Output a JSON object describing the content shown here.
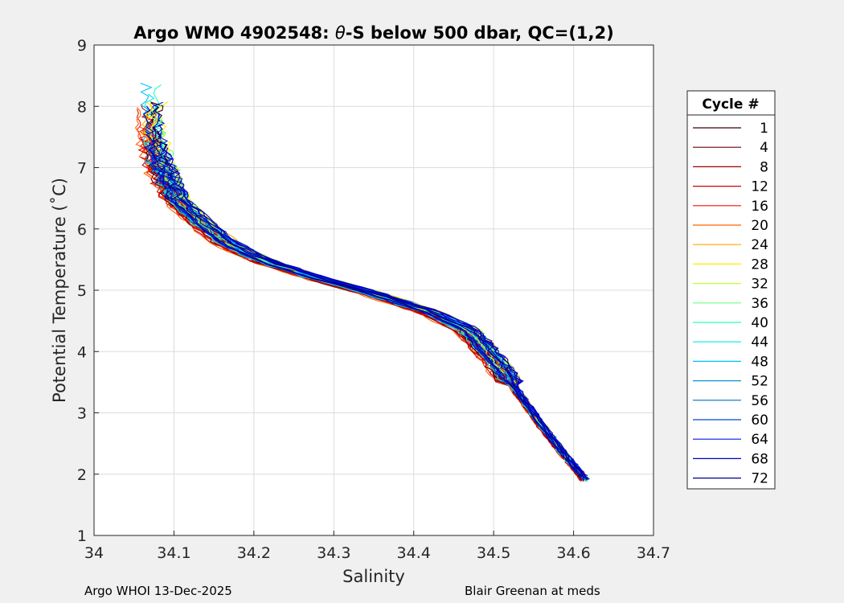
{
  "chart_data": {
    "type": "line",
    "title_prefix": "Argo WMO 4902548: ",
    "title_theta": "θ",
    "title_suffix": "-S below 500 dbar,  QC=(1,2)",
    "xlabel": "Salinity",
    "ylabel": "Potential Temperature (˚C)",
    "xlim": [
      34,
      34.7
    ],
    "ylim": [
      1,
      9
    ],
    "xticks": [
      "34",
      "34.1",
      "34.2",
      "34.3",
      "34.4",
      "34.5",
      "34.6",
      "34.7"
    ],
    "yticks": [
      "1",
      "2",
      "3",
      "4",
      "5",
      "6",
      "7",
      "8",
      "9"
    ],
    "grid": true,
    "legend_title": "Cycle #",
    "legend_position": "outside-right",
    "series": [
      {
        "name": "1",
        "color": "#3d0000"
      },
      {
        "name": "4",
        "color": "#6e0000"
      },
      {
        "name": "8",
        "color": "#a50000"
      },
      {
        "name": "12",
        "color": "#d00000"
      },
      {
        "name": "16",
        "color": "#f51200"
      },
      {
        "name": "20",
        "color": "#ff6000"
      },
      {
        "name": "24",
        "color": "#ffa800"
      },
      {
        "name": "28",
        "color": "#ffee00"
      },
      {
        "name": "32",
        "color": "#c0ff30"
      },
      {
        "name": "36",
        "color": "#70ff80"
      },
      {
        "name": "40",
        "color": "#28ffc0"
      },
      {
        "name": "44",
        "color": "#00e8f0"
      },
      {
        "name": "48",
        "color": "#00bfff"
      },
      {
        "name": "52",
        "color": "#0098d8"
      },
      {
        "name": "56",
        "color": "#0070c0"
      },
      {
        "name": "60",
        "color": "#0048d8"
      },
      {
        "name": "64",
        "color": "#001ce8"
      },
      {
        "name": "68",
        "color": "#0000c8"
      },
      {
        "name": "72",
        "color": "#00008c"
      }
    ],
    "mean_profile": {
      "s": [
        34.075,
        34.08,
        34.09,
        34.1,
        34.115,
        34.14,
        34.17,
        34.22,
        34.28,
        34.35,
        34.42,
        34.47,
        34.49,
        34.51,
        34.53,
        34.56,
        34.59,
        34.615
      ],
      "t": [
        7.6,
        7.2,
        6.9,
        6.6,
        6.35,
        6.05,
        5.75,
        5.45,
        5.2,
        4.95,
        4.65,
        4.35,
        4.05,
        3.75,
        3.35,
        2.8,
        2.3,
        1.92
      ]
    }
  },
  "footer": {
    "left": "Argo WHOI 13-Dec-2025",
    "right": "Blair Greenan at meds"
  }
}
